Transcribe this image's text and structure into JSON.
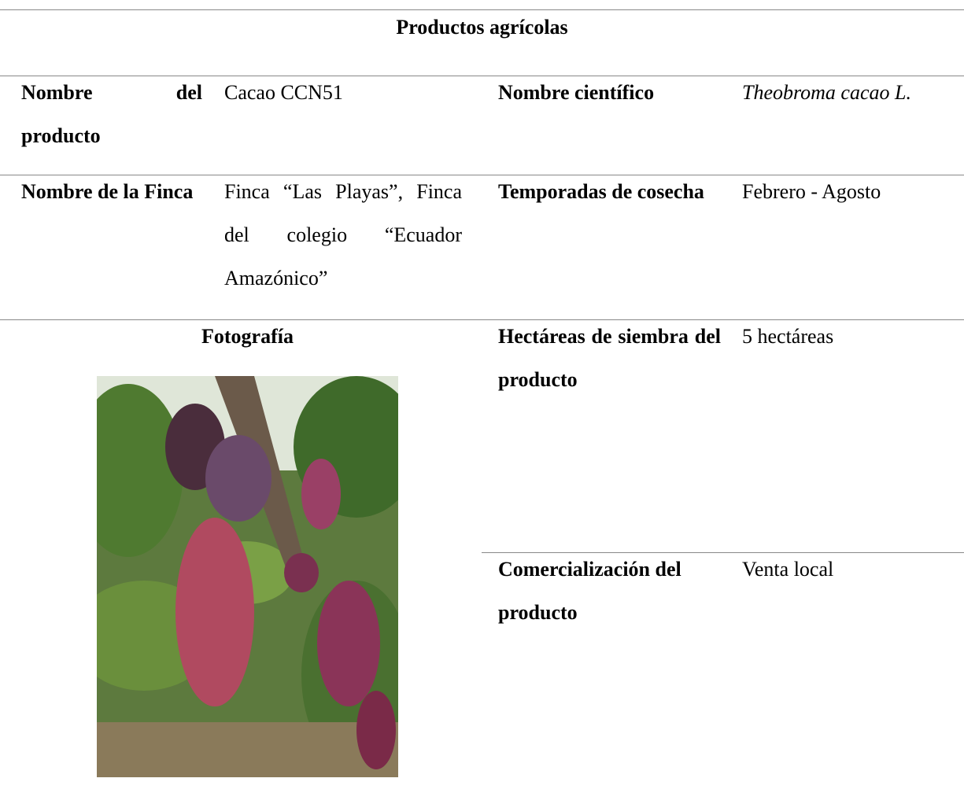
{
  "table": {
    "title": "Productos agrícolas",
    "rows": [
      [
        "Nombre del producto",
        "Cacao CCN51",
        "Nombre científico",
        "Theobroma cacao L."
      ],
      [
        "Nombre de la Finca",
        "Finca “Las Playas”, Finca del colegio “Ecuador Amazónico”",
        "Temporadas de cosecha",
        "Febrero - Agosto"
      ],
      [
        "Fotografía",
        "Hectáreas de siembra del producto",
        "5 hectáreas"
      ],
      [
        "Comercialización del producto",
        "Venta local"
      ]
    ]
  }
}
